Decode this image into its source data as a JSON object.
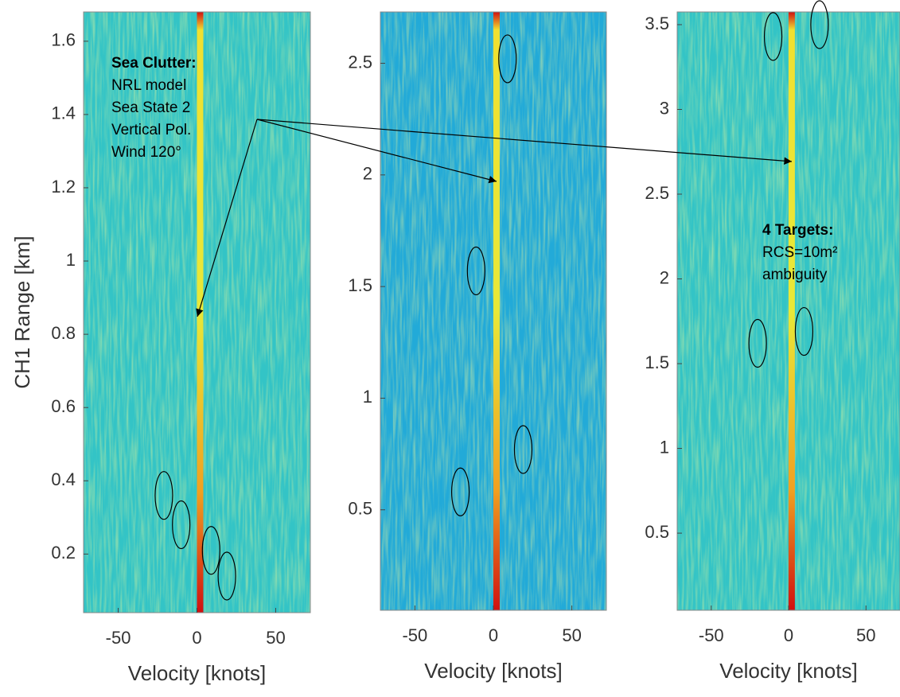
{
  "chart_data": [
    {
      "type": "heatmap",
      "color": "#33c4c6",
      "xlabel": "Velocity [knots]",
      "ylabel": "CH1 Range [km]",
      "xlim": [
        -72,
        72
      ],
      "ylim": [
        0.04,
        1.68
      ],
      "xticks": [
        -50,
        0,
        50
      ],
      "yticks": [
        0.2,
        0.4,
        0.6,
        0.8,
        1,
        1.2,
        1.4,
        1.6
      ],
      "clutter_velocity": 2,
      "targets": {
        "x": [
          -21,
          -10,
          9,
          19
        ],
        "y": [
          0.36,
          0.28,
          0.21,
          0.14
        ]
      },
      "annotation": {
        "title": "Sea Clutter:",
        "lines": [
          "NRL model",
          "Sea State 2",
          "Vertical Pol.",
          "Wind 120°"
        ]
      }
    },
    {
      "type": "heatmap",
      "color": "#22aad8",
      "xlabel": "Velocity [knots]",
      "xlim": [
        -72,
        72
      ],
      "ylim": [
        0.05,
        2.73
      ],
      "xticks": [
        -50,
        0,
        50
      ],
      "yticks": [
        0.5,
        1,
        1.5,
        2,
        2.5
      ],
      "clutter_velocity": 2,
      "targets": {
        "x": [
          9,
          -11,
          19,
          -21
        ],
        "y": [
          2.52,
          1.57,
          0.77,
          0.58
        ]
      }
    },
    {
      "type": "heatmap",
      "color": "#33c4c6",
      "xlabel": "Velocity [knots]",
      "xlim": [
        -72,
        72
      ],
      "ylim": [
        0.045,
        3.575
      ],
      "xticks": [
        -50,
        0,
        50
      ],
      "yticks": [
        0.5,
        1,
        1.5,
        2,
        2.5,
        3,
        3.5
      ],
      "clutter_velocity": 2,
      "targets": {
        "x": [
          -10,
          20,
          -20,
          10
        ],
        "y": [
          3.43,
          3.5,
          1.62,
          1.69
        ]
      },
      "annotation": {
        "title": "4 Targets:",
        "lines": [
          "RCS=10m²",
          "ambiguity"
        ]
      }
    }
  ]
}
